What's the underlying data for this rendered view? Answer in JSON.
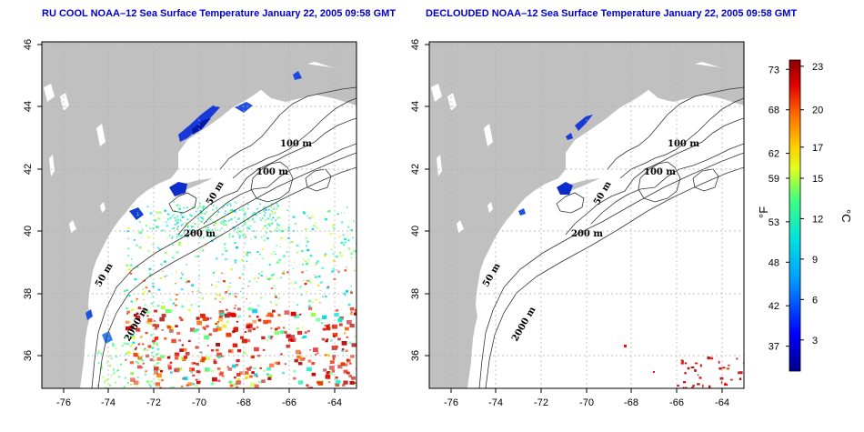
{
  "titles": {
    "left": "RU COOL NOAA–12 Sea Surface Temperature January 22, 2005 09:58 GMT",
    "right": "DECLOUDED NOAA–12 Sea Surface Temperature January 22, 2005 09:58 GMT"
  },
  "axes": {
    "x_ticks": [
      "-76",
      "-74",
      "-72",
      "-70",
      "-68",
      "-66",
      "-64"
    ],
    "y_ticks": [
      "36",
      "38",
      "40",
      "42",
      "44",
      "46"
    ]
  },
  "contour_labels": {
    "left": [
      "100 m",
      "100 m",
      "50 m",
      "200 m",
      "50 m",
      "2000 m"
    ],
    "right": [
      "100 m",
      "100 m",
      "50 m",
      "200 m",
      "50 m",
      "2000 m"
    ]
  },
  "colorbar": {
    "fahrenheit_ticks": [
      "73",
      "68",
      "62",
      "59",
      "53",
      "48",
      "42",
      "37"
    ],
    "celsius_ticks": [
      "23",
      "20",
      "17",
      "15",
      "12",
      "9",
      "6",
      "3"
    ],
    "fahrenheit_unit": "°F",
    "celsius_unit": "°C"
  },
  "colors": {
    "land": "#c0c0c0",
    "title": "#0000c8",
    "warm": "#cc2200",
    "cold": "#1030d0"
  }
}
